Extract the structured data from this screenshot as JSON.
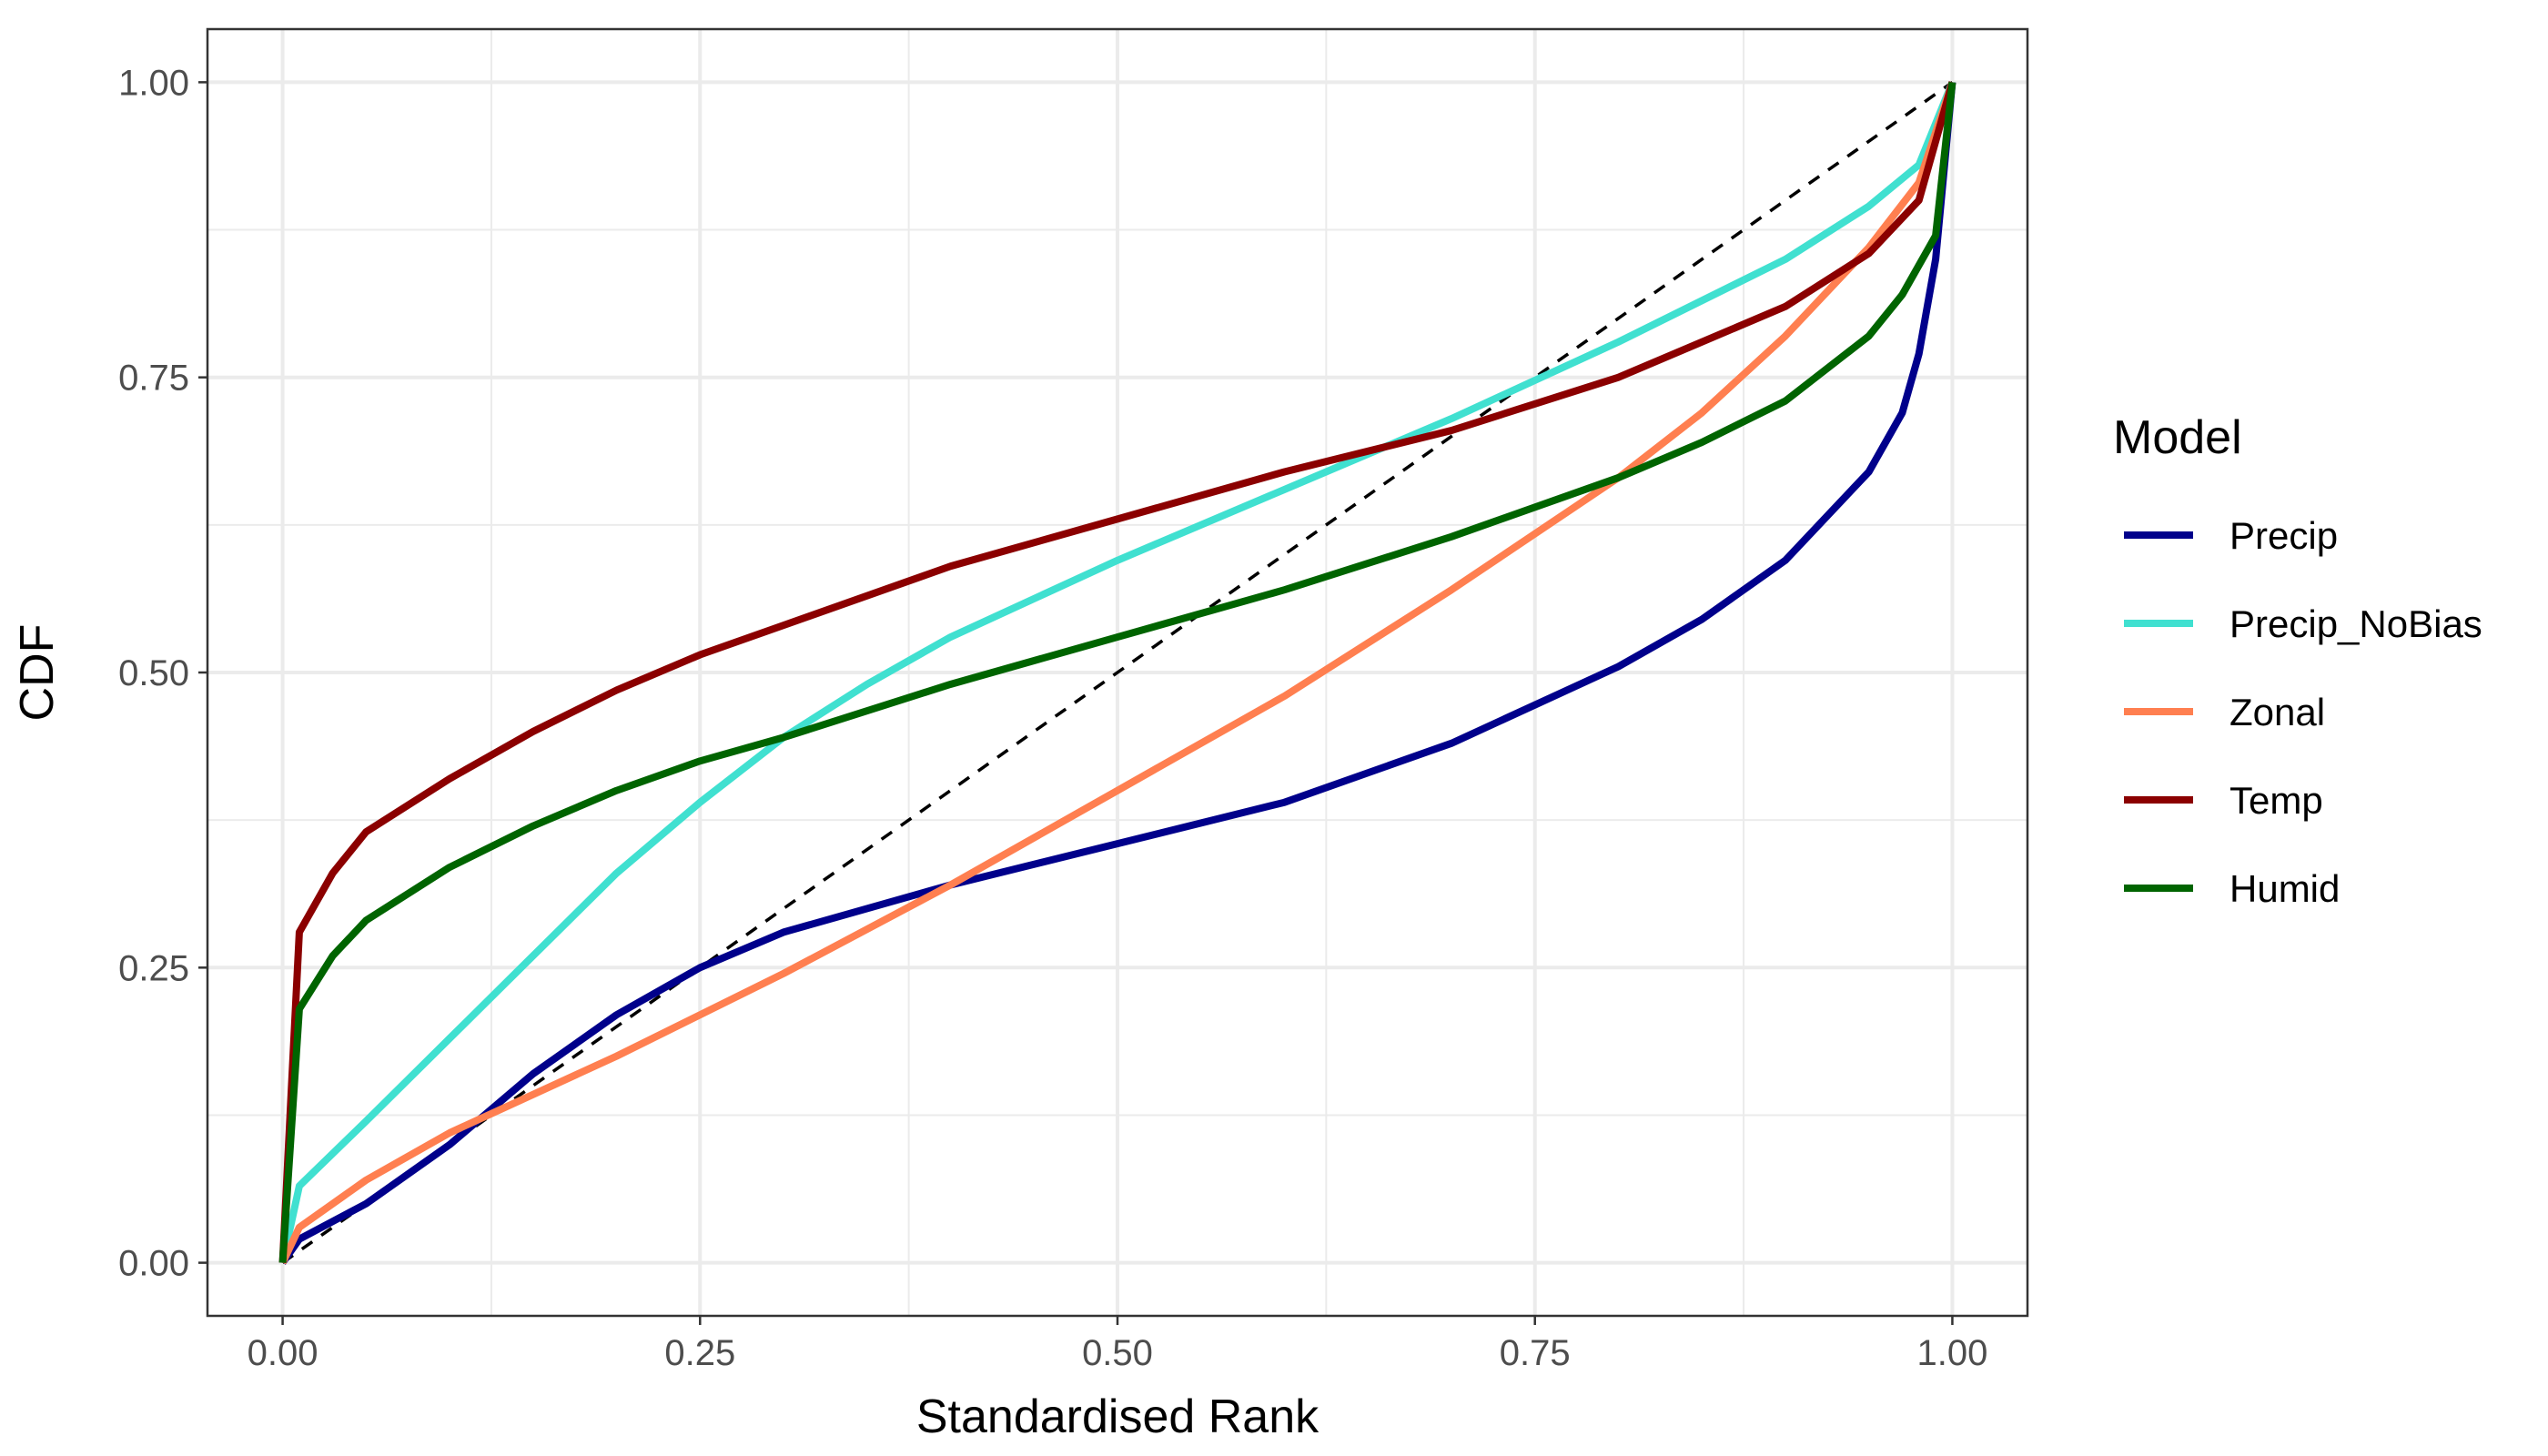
{
  "chart_data": {
    "type": "line",
    "xlabel": "Standardised Rank",
    "ylabel": "CDF",
    "xlim": [
      0,
      1
    ],
    "ylim": [
      0,
      1
    ],
    "x_ticks": [
      "0.00",
      "0.25",
      "0.50",
      "0.75",
      "1.00"
    ],
    "y_ticks": [
      "0.00",
      "0.25",
      "0.50",
      "0.75",
      "1.00"
    ],
    "x_tick_values": [
      0,
      0.25,
      0.5,
      0.75,
      1
    ],
    "y_tick_values": [
      0,
      0.25,
      0.5,
      0.75,
      1
    ],
    "grid": true,
    "legend_title": "Model",
    "legend_position": "right",
    "reference_line": {
      "x": [
        0,
        1
      ],
      "y": [
        0,
        1
      ],
      "style": "dashed",
      "color": "#000000"
    },
    "series": [
      {
        "name": "Precip",
        "color": "#00008b",
        "x": [
          0,
          0.01,
          0.05,
          0.1,
          0.15,
          0.2,
          0.25,
          0.3,
          0.4,
          0.5,
          0.6,
          0.7,
          0.8,
          0.85,
          0.9,
          0.93,
          0.95,
          0.97,
          0.98,
          0.99,
          1.0
        ],
        "y": [
          0,
          0.02,
          0.05,
          0.1,
          0.16,
          0.21,
          0.25,
          0.28,
          0.32,
          0.355,
          0.39,
          0.44,
          0.505,
          0.545,
          0.595,
          0.64,
          0.67,
          0.72,
          0.77,
          0.85,
          1.0
        ]
      },
      {
        "name": "Precip_NoBias",
        "color": "#40e0d0",
        "x": [
          0,
          0.01,
          0.05,
          0.1,
          0.15,
          0.2,
          0.25,
          0.3,
          0.35,
          0.4,
          0.5,
          0.6,
          0.7,
          0.8,
          0.9,
          0.95,
          0.98,
          1.0
        ],
        "y": [
          0,
          0.065,
          0.12,
          0.19,
          0.26,
          0.33,
          0.39,
          0.445,
          0.49,
          0.53,
          0.595,
          0.655,
          0.715,
          0.78,
          0.85,
          0.895,
          0.93,
          1.0
        ]
      },
      {
        "name": "Zonal",
        "color": "#ff7f50",
        "x": [
          0,
          0.01,
          0.05,
          0.1,
          0.2,
          0.3,
          0.4,
          0.5,
          0.6,
          0.7,
          0.8,
          0.85,
          0.9,
          0.95,
          0.98,
          1.0
        ],
        "y": [
          0,
          0.03,
          0.07,
          0.11,
          0.175,
          0.245,
          0.32,
          0.4,
          0.48,
          0.57,
          0.665,
          0.72,
          0.785,
          0.86,
          0.915,
          1.0
        ]
      },
      {
        "name": "Temp",
        "color": "#8b0000",
        "x": [
          0,
          0.01,
          0.03,
          0.05,
          0.1,
          0.15,
          0.2,
          0.25,
          0.3,
          0.4,
          0.5,
          0.6,
          0.7,
          0.8,
          0.9,
          0.95,
          0.98,
          1.0
        ],
        "y": [
          0,
          0.28,
          0.33,
          0.365,
          0.41,
          0.45,
          0.485,
          0.515,
          0.54,
          0.59,
          0.63,
          0.67,
          0.705,
          0.75,
          0.81,
          0.855,
          0.9,
          1.0
        ]
      },
      {
        "name": "Humid",
        "color": "#006400",
        "x": [
          0,
          0.01,
          0.03,
          0.05,
          0.1,
          0.15,
          0.2,
          0.25,
          0.3,
          0.4,
          0.5,
          0.6,
          0.7,
          0.8,
          0.85,
          0.9,
          0.95,
          0.97,
          0.99,
          1.0
        ],
        "y": [
          0,
          0.215,
          0.26,
          0.29,
          0.335,
          0.37,
          0.4,
          0.425,
          0.445,
          0.49,
          0.53,
          0.57,
          0.615,
          0.665,
          0.695,
          0.73,
          0.785,
          0.82,
          0.87,
          1.0
        ]
      }
    ]
  }
}
